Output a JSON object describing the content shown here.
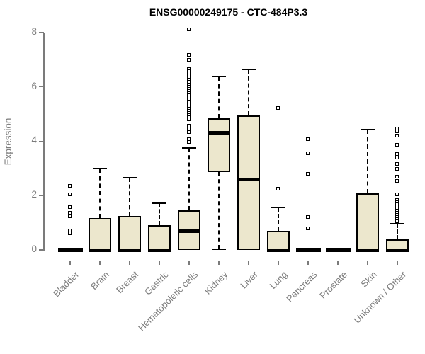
{
  "page": {
    "background": "#ffffff"
  },
  "chart_data": {
    "type": "boxplot",
    "title": "ENSG00000249175 - CTC-484P3.3",
    "ylabel": "Expression",
    "xlabel": "",
    "ylim": [
      0,
      8.2
    ],
    "yticks": [
      0,
      2,
      4,
      6,
      8
    ],
    "grid": false,
    "legend": null,
    "categories": [
      "Bladder",
      "Brain",
      "Breast",
      "Gastric",
      "Hematopoietic cells",
      "Kidney",
      "Liver",
      "Lung",
      "Pancreas",
      "Prostate",
      "Skin",
      "Unknown / Other"
    ],
    "boxes": [
      {
        "category": "Bladder",
        "low": 0,
        "q1": 0,
        "median": 0,
        "q3": 0,
        "high": 0,
        "outliers": [
          2.34,
          2.03,
          1.56,
          1.35,
          1.22,
          0.7,
          0.6
        ]
      },
      {
        "category": "Brain",
        "low": 0,
        "q1": 0,
        "median": 0,
        "q3": 1.17,
        "high": 3.0,
        "outliers": []
      },
      {
        "category": "Breast",
        "low": 0,
        "q1": 0,
        "median": 0,
        "q3": 1.25,
        "high": 2.66,
        "outliers": []
      },
      {
        "category": "Gastric",
        "low": 0,
        "q1": 0,
        "median": 0,
        "q3": 0.91,
        "high": 1.72,
        "outliers": []
      },
      {
        "category": "Hematopoietic cells",
        "low": 0,
        "q1": 0,
        "median": 0.68,
        "q3": 1.46,
        "high": 3.76,
        "outliers": [
          8.1,
          7.15,
          6.97,
          6.65,
          6.57,
          6.49,
          6.4,
          6.32,
          6.24,
          6.16,
          6.08,
          6.0,
          5.92,
          5.83,
          5.75,
          5.67,
          5.59,
          5.51,
          5.43,
          5.35,
          5.26,
          5.18,
          5.1,
          5.02,
          4.94,
          4.86,
          4.78,
          4.55,
          4.45,
          4.33,
          4.05,
          3.95
        ]
      },
      {
        "category": "Kidney",
        "low": 0.02,
        "q1": 2.86,
        "median": 4.3,
        "q3": 4.84,
        "high": 6.38,
        "outliers": []
      },
      {
        "category": "Liver",
        "low": 0,
        "q1": 0,
        "median": 2.6,
        "q3": 4.95,
        "high": 6.64,
        "outliers": []
      },
      {
        "category": "Lung",
        "low": 0,
        "q1": 0,
        "median": 0,
        "q3": 0.7,
        "high": 1.56,
        "outliers": [
          5.2,
          2.24
        ]
      },
      {
        "category": "Pancreas",
        "low": 0,
        "q1": 0,
        "median": 0,
        "q3": 0,
        "high": 0,
        "outliers": [
          4.06,
          3.54,
          2.79,
          1.2,
          0.78
        ]
      },
      {
        "category": "Prostate",
        "low": 0,
        "q1": 0,
        "median": 0,
        "q3": 0,
        "high": 0,
        "outliers": []
      },
      {
        "category": "Skin",
        "low": 0,
        "q1": 0,
        "median": 0,
        "q3": 2.08,
        "high": 4.43,
        "outliers": []
      },
      {
        "category": "Unknown / Other",
        "low": 0,
        "q1": 0,
        "median": 0,
        "q3": 0.39,
        "high": 0.97,
        "outliers": [
          4.45,
          4.34,
          4.18,
          3.86,
          3.52,
          3.38,
          3.14,
          2.97,
          2.67,
          2.53,
          2.03,
          1.82,
          1.74,
          1.66,
          1.58,
          1.5,
          1.43,
          1.35,
          1.27,
          1.19,
          1.11,
          1.04
        ]
      }
    ],
    "colors": {
      "box_fill": "#ECE7CD",
      "box_border": "#000000",
      "median": "#000000",
      "axis": "#7b7b7b",
      "tick_label": "#7b7b7b",
      "title": "#000000"
    }
  }
}
